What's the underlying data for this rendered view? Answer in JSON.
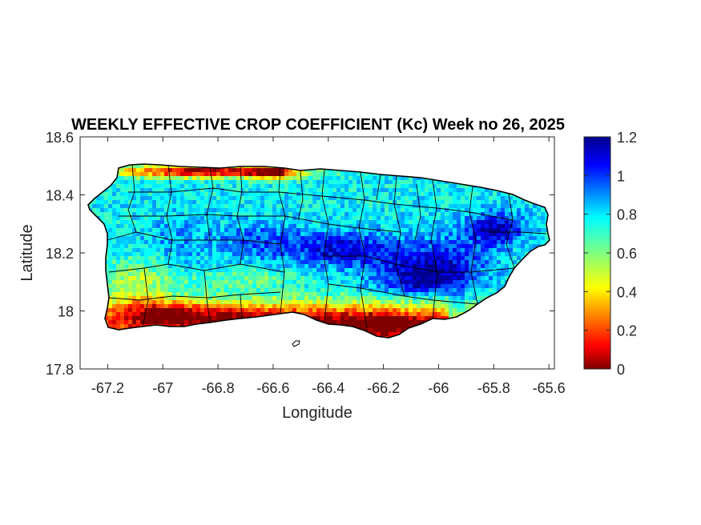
{
  "figure": {
    "title": "WEEKLY EFFECTIVE CROP COEFFICIENT (Kc) Week no 26, 2025"
  },
  "chart_data": {
    "type": "heatmap",
    "title": "WEEKLY EFFECTIVE CROP COEFFICIENT (Kc) Week no 26, 2025",
    "xlabel": "Longitude",
    "ylabel": "Latitude",
    "xlim": [
      -67.3,
      -65.58
    ],
    "ylim": [
      17.8,
      18.6
    ],
    "xticks": [
      -67.2,
      -67,
      -66.8,
      -66.6,
      -66.4,
      -66.2,
      -66,
      -65.8,
      -65.6
    ],
    "xtick_labels": [
      "-67.2",
      "-67",
      "-66.8",
      "-66.6",
      "-66.4",
      "-66.2",
      "-66",
      "-65.8",
      "-65.6"
    ],
    "yticks": [
      17.8,
      18,
      18.2,
      18.4,
      18.6
    ],
    "ytick_labels": [
      "17.8",
      "18",
      "18.2",
      "18.4",
      "18.6"
    ],
    "colorbar": {
      "colormap": "jet",
      "range": [
        0,
        1.2
      ],
      "ticks": [
        0,
        0.2,
        0.4,
        0.6,
        0.8,
        1,
        1.2
      ],
      "tick_labels": [
        "0",
        "0.2",
        "0.4",
        "0.6",
        "0.8",
        "1",
        "1.2"
      ],
      "placement": "right"
    },
    "grid": false,
    "region": "Puerto Rico",
    "pattern_summary": {
      "north_coast_west": "low Kc (0–0.3)",
      "central_and_east_interior": "high Kc (0.9–1.2)",
      "south_coast": "low Kc (0–0.4)",
      "west_and_north": "moderate Kc (0.6–0.85)"
    },
    "colors": {
      "jet_stops": [
        "#00008f",
        "#0000ff",
        "#00ffff",
        "#ffff00",
        "#ff0000",
        "#800000"
      ]
    }
  }
}
